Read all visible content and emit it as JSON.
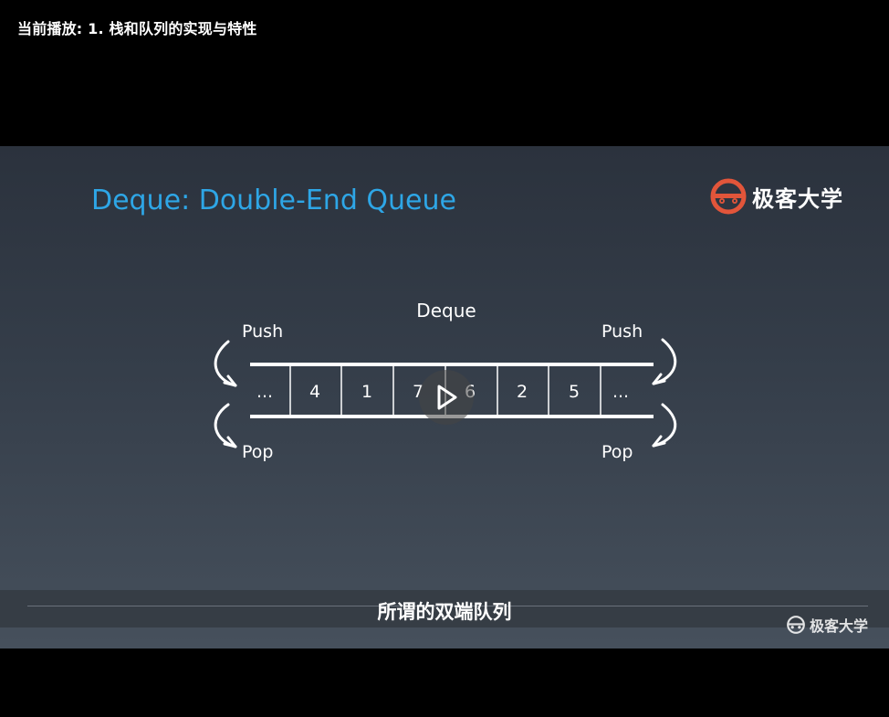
{
  "player": {
    "now_playing": "当前播放: 1. 栈和队列的实现与特性"
  },
  "slide": {
    "title": "Deque: Double-End Queue",
    "brand": "极客大学",
    "diagram": {
      "caption": "Deque",
      "cells": [
        "...",
        "4",
        "1",
        "7",
        "6",
        "2",
        "5",
        "..."
      ],
      "left_push_label": "Push",
      "right_push_label": "Push",
      "left_pop_label": "Pop",
      "right_pop_label": "Pop"
    }
  },
  "subtitle": {
    "text": "所谓的双端队列"
  },
  "watermark": {
    "text": "极客大学"
  },
  "colors": {
    "title": "#2ea6e6",
    "brand_logo": "#e2553a",
    "background_top": "#2b323d",
    "background_bottom": "#46505c"
  }
}
